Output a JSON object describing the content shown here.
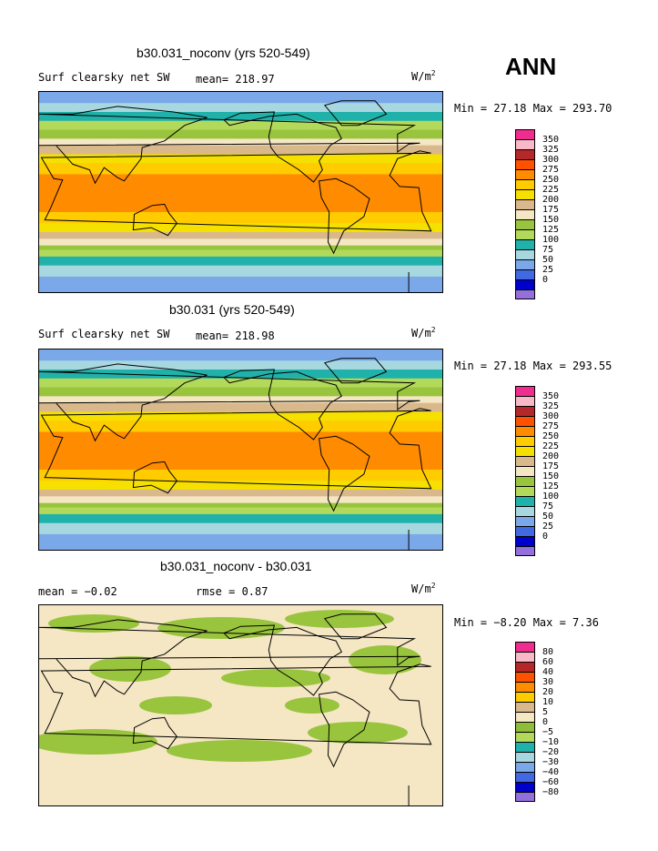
{
  "season": "ANN",
  "units_base": "W/m",
  "units_exp": "2",
  "panels": [
    {
      "title": "b30.031_noconv (yrs 520-549)",
      "left_label": "Surf clearsky net SW",
      "mid_label": "mean= 218.97",
      "minmax": "Min =  27.18 Max = 293.70",
      "colorbar_labels": [
        "350",
        "325",
        "300",
        "275",
        "250",
        "225",
        "200",
        "175",
        "150",
        "125",
        "100",
        "75",
        "50",
        "25",
        "0"
      ]
    },
    {
      "title": "b30.031 (yrs 520-549)",
      "left_label": "Surf clearsky net SW",
      "mid_label": "mean= 218.98",
      "minmax": "Min =  27.18 Max = 293.55",
      "colorbar_labels": [
        "350",
        "325",
        "300",
        "275",
        "250",
        "225",
        "200",
        "175",
        "150",
        "125",
        "100",
        "75",
        "50",
        "25",
        "0"
      ]
    },
    {
      "title": "b30.031_noconv - b30.031",
      "left_label": "mean =  −0.02",
      "mid_label": "rmse =   0.87",
      "minmax": "Min =  −8.20 Max =   7.36",
      "colorbar_labels": [
        "80",
        "60",
        "40",
        "30",
        "20",
        "10",
        "5",
        "0",
        "−5",
        "−10",
        "−20",
        "−30",
        "−40",
        "−60",
        "−80"
      ]
    }
  ],
  "colors": {
    "abs_scale": [
      "#ee2d8f",
      "#f8b8c8",
      "#b4282a",
      "#ff5200",
      "#ff8c00",
      "#ffcc00",
      "#f5e000",
      "#d9b98b",
      "#f5e6c4",
      "#99c43d",
      "#b3d95a",
      "#20b2aa",
      "#a7d8e0",
      "#7aa8e8",
      "#4169e1",
      "#0000cd",
      "#9370db"
    ],
    "diff_scale": [
      "#ee2d8f",
      "#f8b8c8",
      "#b4282a",
      "#ff5200",
      "#ff8c00",
      "#ffcc00",
      "#d9b98b",
      "#f5e6c4",
      "#8fbc3a",
      "#b3d95a",
      "#20b2aa",
      "#a7d8e0",
      "#7aa8e8",
      "#4169e1",
      "#0000cd",
      "#9370db"
    ]
  },
  "chart_data": [
    {
      "type": "heatmap",
      "title": "b30.031_noconv (yrs 520-549)",
      "variable": "Surf clearsky net SW",
      "units": "W/m^2",
      "mean": 218.97,
      "min": 27.18,
      "max": 293.7,
      "levels": [
        0,
        25,
        50,
        75,
        100,
        125,
        150,
        175,
        200,
        225,
        250,
        275,
        300,
        325,
        350
      ],
      "zonal_profile": [
        {
          "lat": 90,
          "value": 55
        },
        {
          "lat": 75,
          "value": 90
        },
        {
          "lat": 60,
          "value": 140
        },
        {
          "lat": 45,
          "value": 190
        },
        {
          "lat": 30,
          "value": 245
        },
        {
          "lat": 15,
          "value": 280
        },
        {
          "lat": 0,
          "value": 285
        },
        {
          "lat": -15,
          "value": 280
        },
        {
          "lat": -30,
          "value": 245
        },
        {
          "lat": -45,
          "value": 180
        },
        {
          "lat": -60,
          "value": 110
        },
        {
          "lat": -75,
          "value": 75
        },
        {
          "lat": -90,
          "value": 50
        }
      ]
    },
    {
      "type": "heatmap",
      "title": "b30.031 (yrs 520-549)",
      "variable": "Surf clearsky net SW",
      "units": "W/m^2",
      "mean": 218.98,
      "min": 27.18,
      "max": 293.55,
      "levels": [
        0,
        25,
        50,
        75,
        100,
        125,
        150,
        175,
        200,
        225,
        250,
        275,
        300,
        325,
        350
      ],
      "zonal_profile": [
        {
          "lat": 90,
          "value": 55
        },
        {
          "lat": 75,
          "value": 90
        },
        {
          "lat": 60,
          "value": 140
        },
        {
          "lat": 45,
          "value": 190
        },
        {
          "lat": 30,
          "value": 245
        },
        {
          "lat": 15,
          "value": 280
        },
        {
          "lat": 0,
          "value": 285
        },
        {
          "lat": -15,
          "value": 280
        },
        {
          "lat": -30,
          "value": 245
        },
        {
          "lat": -45,
          "value": 180
        },
        {
          "lat": -60,
          "value": 110
        },
        {
          "lat": -75,
          "value": 75
        },
        {
          "lat": -90,
          "value": 50
        }
      ]
    },
    {
      "type": "heatmap",
      "title": "b30.031_noconv - b30.031",
      "units": "W/m^2",
      "mean": -0.02,
      "rmse": 0.87,
      "min": -8.2,
      "max": 7.36,
      "levels": [
        -80,
        -60,
        -40,
        -30,
        -20,
        -10,
        -5,
        0,
        5,
        10,
        20,
        30,
        40,
        60,
        80
      ]
    }
  ]
}
